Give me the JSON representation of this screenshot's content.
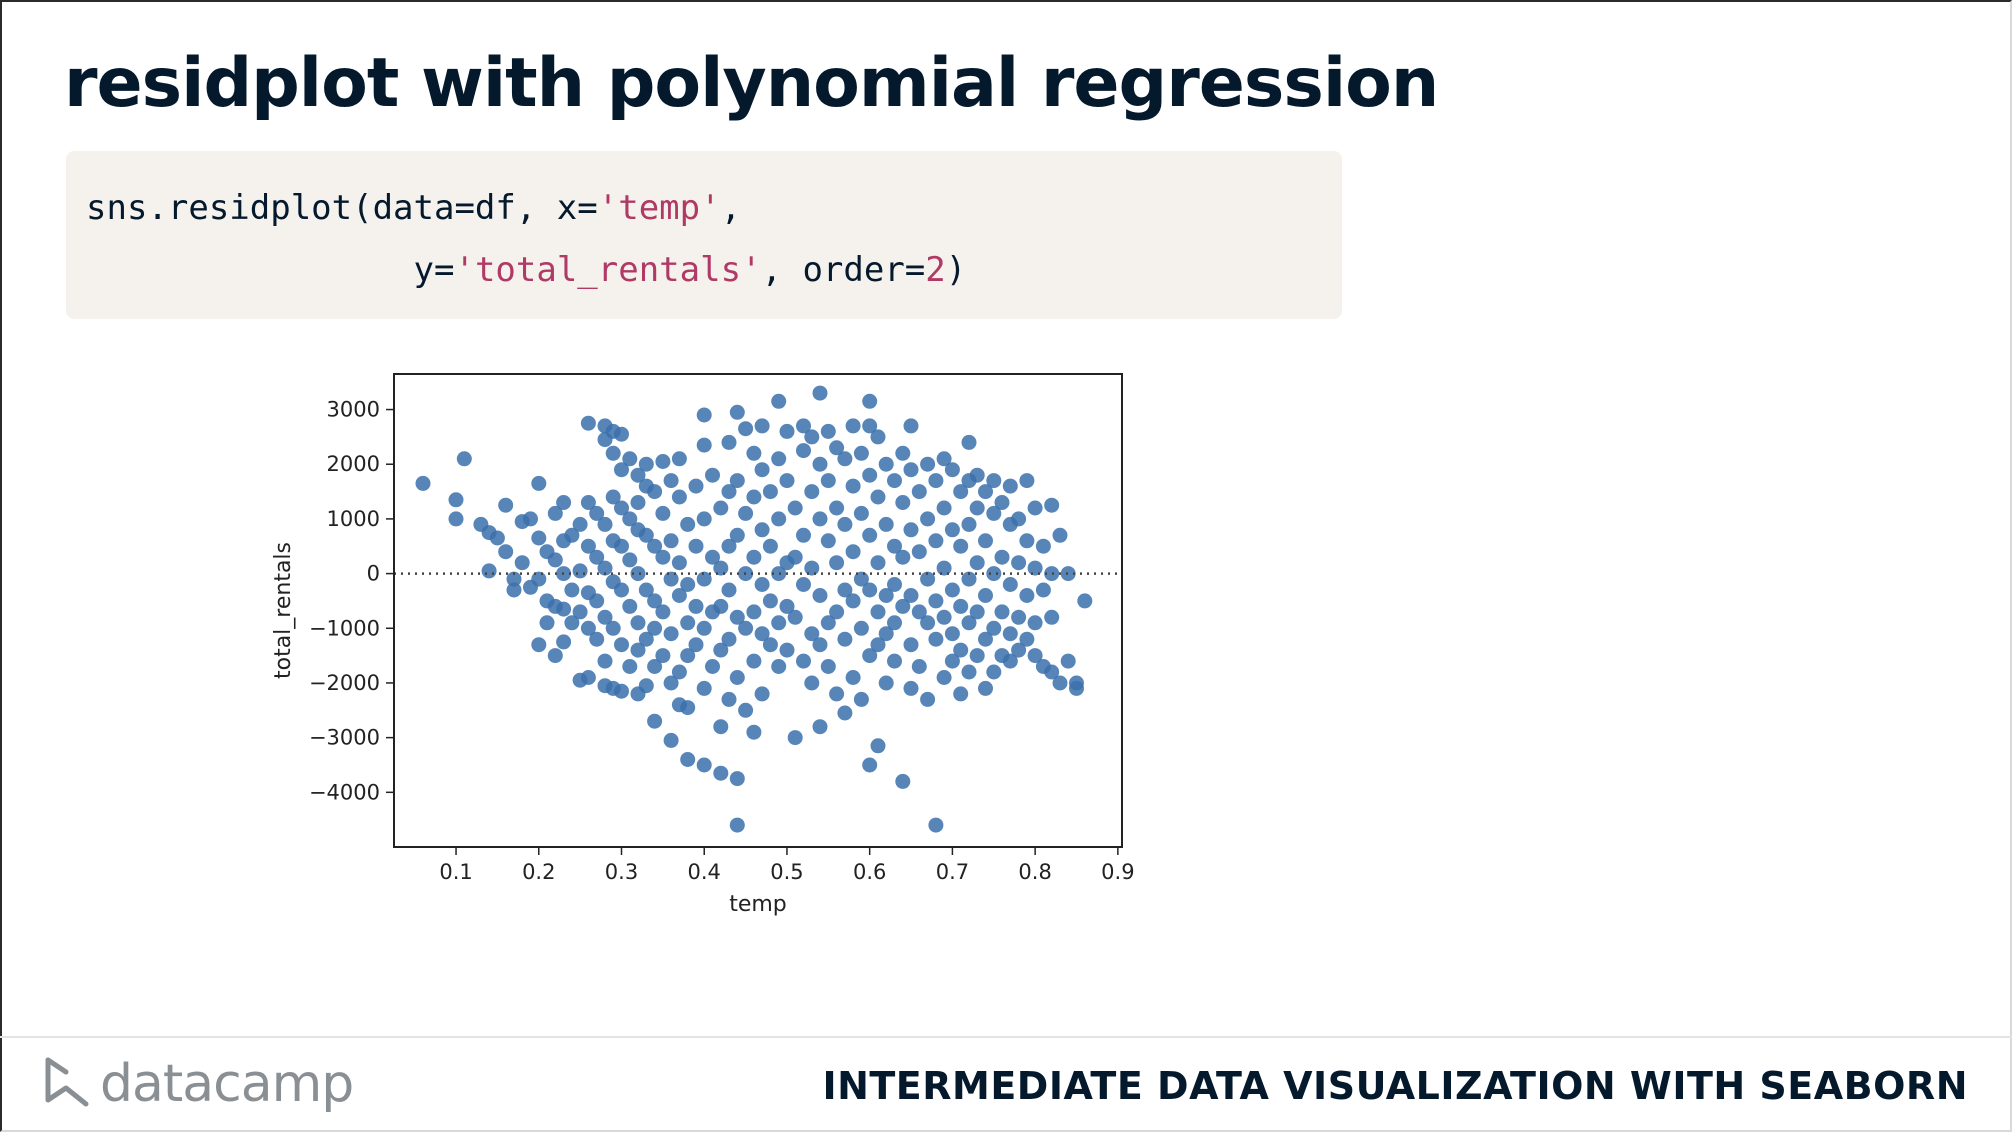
{
  "slide": {
    "title": "residplot with polynomial regression",
    "course_title": "INTERMEDIATE DATA VISUALIZATION WITH SEABORN",
    "brand": "datacamp"
  },
  "code": {
    "line1_prefix": "sns.residplot(data=df, x=",
    "line1_str": "'temp'",
    "line1_suffix": ",",
    "line2_indent": "                y=",
    "line2_str": "'total_rentals'",
    "line2_mid": ", order=",
    "line2_num": "2",
    "line2_end": ")"
  },
  "colors": {
    "point": "#3a70ab",
    "title": "#05192d",
    "code_bg": "#f5f2ed",
    "code_string": "#b03a66"
  },
  "chart_data": {
    "type": "scatter",
    "xlabel": "temp",
    "ylabel": "total_rentals",
    "xlim": [
      0.025,
      0.905
    ],
    "ylim": [
      -5000,
      3650
    ],
    "xticks": [
      0.1,
      0.2,
      0.3,
      0.4,
      0.5,
      0.6,
      0.7,
      0.8,
      0.9
    ],
    "xtick_labels": [
      "0.1",
      "0.2",
      "0.3",
      "0.4",
      "0.5",
      "0.6",
      "0.7",
      "0.8",
      "0.9"
    ],
    "yticks": [
      3000,
      2000,
      1000,
      0,
      -1000,
      -2000,
      -3000,
      -4000
    ],
    "ytick_labels": [
      "3000",
      "2000",
      "1000",
      "0",
      "−1000",
      "−2000",
      "−3000",
      "−4000"
    ],
    "reference_line_y": 0,
    "points": [
      [
        0.06,
        1650
      ],
      [
        0.1,
        1350
      ],
      [
        0.1,
        1000
      ],
      [
        0.11,
        2100
      ],
      [
        0.13,
        900
      ],
      [
        0.14,
        750
      ],
      [
        0.14,
        50
      ],
      [
        0.15,
        650
      ],
      [
        0.16,
        1250
      ],
      [
        0.16,
        400
      ],
      [
        0.17,
        -100
      ],
      [
        0.17,
        -300
      ],
      [
        0.18,
        950
      ],
      [
        0.18,
        200
      ],
      [
        0.19,
        1000
      ],
      [
        0.19,
        -250
      ],
      [
        0.2,
        1650
      ],
      [
        0.2,
        650
      ],
      [
        0.2,
        -100
      ],
      [
        0.2,
        -1300
      ],
      [
        0.21,
        400
      ],
      [
        0.21,
        -500
      ],
      [
        0.21,
        -900
      ],
      [
        0.22,
        1100
      ],
      [
        0.22,
        250
      ],
      [
        0.22,
        -600
      ],
      [
        0.22,
        -1500
      ],
      [
        0.23,
        1300
      ],
      [
        0.23,
        600
      ],
      [
        0.23,
        0
      ],
      [
        0.23,
        -650
      ],
      [
        0.23,
        -1250
      ],
      [
        0.24,
        700
      ],
      [
        0.24,
        -300
      ],
      [
        0.24,
        -900
      ],
      [
        0.25,
        900
      ],
      [
        0.25,
        50
      ],
      [
        0.25,
        -700
      ],
      [
        0.25,
        -1950
      ],
      [
        0.26,
        2750
      ],
      [
        0.26,
        1300
      ],
      [
        0.26,
        500
      ],
      [
        0.26,
        -350
      ],
      [
        0.26,
        -1000
      ],
      [
        0.26,
        -1900
      ],
      [
        0.27,
        1100
      ],
      [
        0.27,
        300
      ],
      [
        0.27,
        -500
      ],
      [
        0.27,
        -1200
      ],
      [
        0.28,
        2700
      ],
      [
        0.28,
        2450
      ],
      [
        0.28,
        900
      ],
      [
        0.28,
        100
      ],
      [
        0.28,
        -800
      ],
      [
        0.28,
        -1600
      ],
      [
        0.28,
        -2050
      ],
      [
        0.29,
        2600
      ],
      [
        0.29,
        2200
      ],
      [
        0.29,
        1400
      ],
      [
        0.29,
        600
      ],
      [
        0.29,
        -150
      ],
      [
        0.29,
        -1000
      ],
      [
        0.29,
        -2100
      ],
      [
        0.3,
        2550
      ],
      [
        0.3,
        1900
      ],
      [
        0.3,
        1200
      ],
      [
        0.3,
        500
      ],
      [
        0.3,
        -300
      ],
      [
        0.3,
        -1300
      ],
      [
        0.3,
        -2150
      ],
      [
        0.31,
        2100
      ],
      [
        0.31,
        1000
      ],
      [
        0.31,
        250
      ],
      [
        0.31,
        -600
      ],
      [
        0.31,
        -1700
      ],
      [
        0.32,
        1800
      ],
      [
        0.32,
        1300
      ],
      [
        0.32,
        800
      ],
      [
        0.32,
        0
      ],
      [
        0.32,
        -900
      ],
      [
        0.32,
        -1400
      ],
      [
        0.32,
        -2200
      ],
      [
        0.33,
        2000
      ],
      [
        0.33,
        1600
      ],
      [
        0.33,
        700
      ],
      [
        0.33,
        -300
      ],
      [
        0.33,
        -1200
      ],
      [
        0.33,
        -2050
      ],
      [
        0.34,
        1500
      ],
      [
        0.34,
        500
      ],
      [
        0.34,
        -500
      ],
      [
        0.34,
        -1000
      ],
      [
        0.34,
        -1700
      ],
      [
        0.34,
        -2700
      ],
      [
        0.35,
        2050
      ],
      [
        0.35,
        1100
      ],
      [
        0.35,
        300
      ],
      [
        0.35,
        -700
      ],
      [
        0.35,
        -1500
      ],
      [
        0.36,
        1700
      ],
      [
        0.36,
        600
      ],
      [
        0.36,
        -100
      ],
      [
        0.36,
        -1100
      ],
      [
        0.36,
        -2000
      ],
      [
        0.36,
        -3050
      ],
      [
        0.37,
        2100
      ],
      [
        0.37,
        1400
      ],
      [
        0.37,
        200
      ],
      [
        0.37,
        -400
      ],
      [
        0.37,
        -1800
      ],
      [
        0.37,
        -2400
      ],
      [
        0.38,
        900
      ],
      [
        0.38,
        -200
      ],
      [
        0.38,
        -900
      ],
      [
        0.38,
        -1500
      ],
      [
        0.38,
        -2450
      ],
      [
        0.38,
        -3400
      ],
      [
        0.39,
        1600
      ],
      [
        0.39,
        500
      ],
      [
        0.39,
        -600
      ],
      [
        0.39,
        -1300
      ],
      [
        0.4,
        2900
      ],
      [
        0.4,
        2350
      ],
      [
        0.4,
        1000
      ],
      [
        0.4,
        -100
      ],
      [
        0.4,
        -1000
      ],
      [
        0.4,
        -2100
      ],
      [
        0.4,
        -3500
      ],
      [
        0.41,
        1800
      ],
      [
        0.41,
        300
      ],
      [
        0.41,
        -700
      ],
      [
        0.41,
        -1700
      ],
      [
        0.42,
        1200
      ],
      [
        0.42,
        100
      ],
      [
        0.42,
        -600
      ],
      [
        0.42,
        -1400
      ],
      [
        0.42,
        -2800
      ],
      [
        0.42,
        -3650
      ],
      [
        0.43,
        2400
      ],
      [
        0.43,
        1500
      ],
      [
        0.43,
        500
      ],
      [
        0.43,
        -300
      ],
      [
        0.43,
        -1200
      ],
      [
        0.43,
        -2300
      ],
      [
        0.44,
        2950
      ],
      [
        0.44,
        1700
      ],
      [
        0.44,
        700
      ],
      [
        0.44,
        -800
      ],
      [
        0.44,
        -1900
      ],
      [
        0.44,
        -3750
      ],
      [
        0.44,
        -4600
      ],
      [
        0.45,
        2650
      ],
      [
        0.45,
        1100
      ],
      [
        0.45,
        0
      ],
      [
        0.45,
        -1000
      ],
      [
        0.45,
        -2500
      ],
      [
        0.46,
        2200
      ],
      [
        0.46,
        1400
      ],
      [
        0.46,
        300
      ],
      [
        0.46,
        -700
      ],
      [
        0.46,
        -1600
      ],
      [
        0.46,
        -2900
      ],
      [
        0.47,
        2700
      ],
      [
        0.47,
        1900
      ],
      [
        0.47,
        800
      ],
      [
        0.47,
        -200
      ],
      [
        0.47,
        -1100
      ],
      [
        0.47,
        -2200
      ],
      [
        0.48,
        1500
      ],
      [
        0.48,
        500
      ],
      [
        0.48,
        -500
      ],
      [
        0.48,
        -1300
      ],
      [
        0.49,
        3150
      ],
      [
        0.49,
        2100
      ],
      [
        0.49,
        1000
      ],
      [
        0.49,
        0
      ],
      [
        0.49,
        -900
      ],
      [
        0.49,
        -1700
      ],
      [
        0.5,
        2600
      ],
      [
        0.5,
        1700
      ],
      [
        0.5,
        200
      ],
      [
        0.5,
        -600
      ],
      [
        0.5,
        -1400
      ],
      [
        0.51,
        1200
      ],
      [
        0.51,
        300
      ],
      [
        0.51,
        -800
      ],
      [
        0.51,
        -3000
      ],
      [
        0.52,
        2700
      ],
      [
        0.52,
        2250
      ],
      [
        0.52,
        700
      ],
      [
        0.52,
        -200
      ],
      [
        0.52,
        -1600
      ],
      [
        0.53,
        2500
      ],
      [
        0.53,
        1500
      ],
      [
        0.53,
        100
      ],
      [
        0.53,
        -1100
      ],
      [
        0.53,
        -2000
      ],
      [
        0.54,
        3300
      ],
      [
        0.54,
        2000
      ],
      [
        0.54,
        1000
      ],
      [
        0.54,
        -400
      ],
      [
        0.54,
        -1300
      ],
      [
        0.54,
        -2800
      ],
      [
        0.55,
        2600
      ],
      [
        0.55,
        1700
      ],
      [
        0.55,
        600
      ],
      [
        0.55,
        -900
      ],
      [
        0.55,
        -1700
      ],
      [
        0.56,
        2300
      ],
      [
        0.56,
        1200
      ],
      [
        0.56,
        200
      ],
      [
        0.56,
        -700
      ],
      [
        0.56,
        -2200
      ],
      [
        0.57,
        2100
      ],
      [
        0.57,
        900
      ],
      [
        0.57,
        -300
      ],
      [
        0.57,
        -1200
      ],
      [
        0.57,
        -2550
      ],
      [
        0.58,
        2700
      ],
      [
        0.58,
        1600
      ],
      [
        0.58,
        400
      ],
      [
        0.58,
        -500
      ],
      [
        0.58,
        -1900
      ],
      [
        0.59,
        2200
      ],
      [
        0.59,
        1100
      ],
      [
        0.59,
        -100
      ],
      [
        0.59,
        -1000
      ],
      [
        0.59,
        -2300
      ],
      [
        0.6,
        3150
      ],
      [
        0.6,
        2700
      ],
      [
        0.6,
        1800
      ],
      [
        0.6,
        700
      ],
      [
        0.6,
        -300
      ],
      [
        0.6,
        -1500
      ],
      [
        0.6,
        -3500
      ],
      [
        0.61,
        2500
      ],
      [
        0.61,
        1400
      ],
      [
        0.61,
        200
      ],
      [
        0.61,
        -700
      ],
      [
        0.61,
        -1300
      ],
      [
        0.61,
        -3150
      ],
      [
        0.62,
        2000
      ],
      [
        0.62,
        900
      ],
      [
        0.62,
        -400
      ],
      [
        0.62,
        -1100
      ],
      [
        0.62,
        -2000
      ],
      [
        0.63,
        1700
      ],
      [
        0.63,
        500
      ],
      [
        0.63,
        -200
      ],
      [
        0.63,
        -900
      ],
      [
        0.63,
        -1600
      ],
      [
        0.64,
        2200
      ],
      [
        0.64,
        1300
      ],
      [
        0.64,
        300
      ],
      [
        0.64,
        -600
      ],
      [
        0.64,
        -3800
      ],
      [
        0.65,
        2700
      ],
      [
        0.65,
        1900
      ],
      [
        0.65,
        800
      ],
      [
        0.65,
        -400
      ],
      [
        0.65,
        -1300
      ],
      [
        0.65,
        -2100
      ],
      [
        0.66,
        1500
      ],
      [
        0.66,
        400
      ],
      [
        0.66,
        -700
      ],
      [
        0.66,
        -1700
      ],
      [
        0.67,
        2000
      ],
      [
        0.67,
        1000
      ],
      [
        0.67,
        -100
      ],
      [
        0.67,
        -900
      ],
      [
        0.67,
        -2300
      ],
      [
        0.68,
        1700
      ],
      [
        0.68,
        600
      ],
      [
        0.68,
        -500
      ],
      [
        0.68,
        -1200
      ],
      [
        0.68,
        -4600
      ],
      [
        0.69,
        2100
      ],
      [
        0.69,
        1200
      ],
      [
        0.69,
        100
      ],
      [
        0.69,
        -800
      ],
      [
        0.69,
        -1900
      ],
      [
        0.7,
        1900
      ],
      [
        0.7,
        800
      ],
      [
        0.7,
        -300
      ],
      [
        0.7,
        -1100
      ],
      [
        0.7,
        -1600
      ],
      [
        0.71,
        1500
      ],
      [
        0.71,
        500
      ],
      [
        0.71,
        -600
      ],
      [
        0.71,
        -1400
      ],
      [
        0.71,
        -2200
      ],
      [
        0.72,
        2400
      ],
      [
        0.72,
        1700
      ],
      [
        0.72,
        900
      ],
      [
        0.72,
        -100
      ],
      [
        0.72,
        -900
      ],
      [
        0.72,
        -1800
      ],
      [
        0.73,
        1800
      ],
      [
        0.73,
        1200
      ],
      [
        0.73,
        200
      ],
      [
        0.73,
        -700
      ],
      [
        0.73,
        -1500
      ],
      [
        0.74,
        1500
      ],
      [
        0.74,
        600
      ],
      [
        0.74,
        -400
      ],
      [
        0.74,
        -1200
      ],
      [
        0.74,
        -2100
      ],
      [
        0.75,
        1700
      ],
      [
        0.75,
        1100
      ],
      [
        0.75,
        0
      ],
      [
        0.75,
        -1000
      ],
      [
        0.75,
        -1800
      ],
      [
        0.76,
        1300
      ],
      [
        0.76,
        300
      ],
      [
        0.76,
        -700
      ],
      [
        0.76,
        -1500
      ],
      [
        0.77,
        1600
      ],
      [
        0.77,
        900
      ],
      [
        0.77,
        -200
      ],
      [
        0.77,
        -1100
      ],
      [
        0.77,
        -1600
      ],
      [
        0.78,
        1000
      ],
      [
        0.78,
        200
      ],
      [
        0.78,
        -800
      ],
      [
        0.78,
        -1400
      ],
      [
        0.79,
        1700
      ],
      [
        0.79,
        600
      ],
      [
        0.79,
        -400
      ],
      [
        0.79,
        -1200
      ],
      [
        0.8,
        1200
      ],
      [
        0.8,
        100
      ],
      [
        0.8,
        -900
      ],
      [
        0.8,
        -1500
      ],
      [
        0.81,
        500
      ],
      [
        0.81,
        -300
      ],
      [
        0.81,
        -1700
      ],
      [
        0.82,
        1250
      ],
      [
        0.82,
        0
      ],
      [
        0.82,
        -800
      ],
      [
        0.82,
        -1800
      ],
      [
        0.83,
        700
      ],
      [
        0.83,
        -2000
      ],
      [
        0.84,
        0
      ],
      [
        0.84,
        -1600
      ],
      [
        0.85,
        -2100
      ],
      [
        0.85,
        -2000
      ],
      [
        0.86,
        -500
      ]
    ]
  }
}
